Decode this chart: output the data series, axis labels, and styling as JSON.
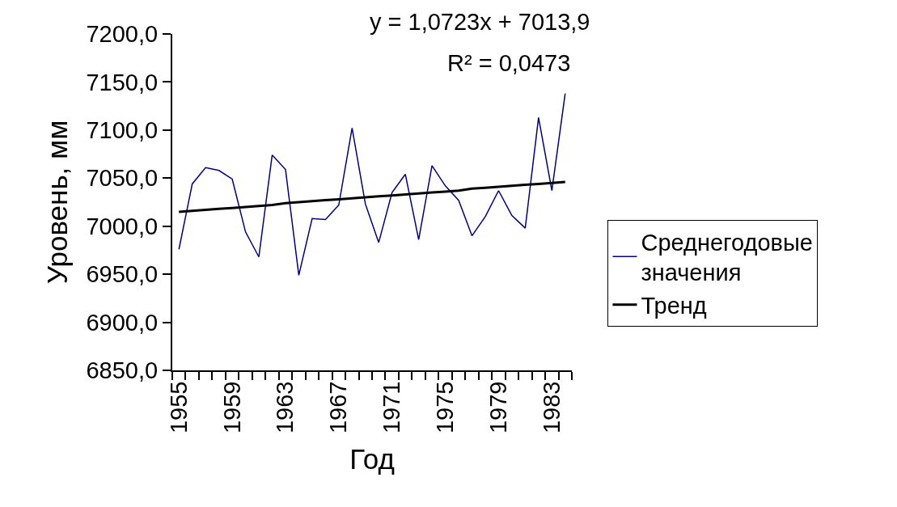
{
  "chart_data": {
    "type": "line",
    "xlabel": "Год",
    "ylabel": "Уровень, мм",
    "categories": [
      "1955",
      null,
      null,
      null,
      "1959",
      null,
      null,
      null,
      "1963",
      null,
      null,
      null,
      "1967",
      null,
      null,
      null,
      "1971",
      null,
      null,
      null,
      "1975",
      null,
      null,
      null,
      "1979",
      null,
      null,
      null,
      "1983",
      null
    ],
    "series": [
      {
        "name": "Среднегодовые значения",
        "color": "#000080",
        "values": [
          6976,
          7044,
          7061,
          7058,
          7049,
          6994,
          6968,
          7074,
          7059,
          6949,
          7008,
          7007,
          7022,
          7102,
          7023,
          6983,
          7035,
          7054,
          6986,
          7063,
          7042,
          7027,
          6990,
          7010,
          7037,
          7011,
          6998,
          7113,
          7037,
          7138
        ]
      },
      {
        "name": "Тренд",
        "color": "#000000",
        "values": [
          7015,
          7016,
          7017,
          7018,
          7019,
          7020,
          7021,
          7022,
          7024,
          7025,
          7026,
          7027,
          7028,
          7029,
          7030,
          7031,
          7032,
          7033,
          7034,
          7035,
          7036,
          7037,
          7039,
          7040,
          7041,
          7042,
          7043,
          7044,
          7045,
          7046
        ]
      }
    ],
    "ylim": [
      6850,
      7200
    ],
    "yticks": [
      {
        "value": 6850,
        "label": "6850,0"
      },
      {
        "value": 6900,
        "label": "6900,0"
      },
      {
        "value": 6950,
        "label": "6950,0"
      },
      {
        "value": 7000,
        "label": "7000,0"
      },
      {
        "value": 7050,
        "label": "7050,0"
      },
      {
        "value": 7100,
        "label": "7100,0"
      },
      {
        "value": 7150,
        "label": "7150,0"
      },
      {
        "value": 7200,
        "label": "7200,0"
      }
    ],
    "annotations": [
      "y = 1,0723x + 7013,9",
      "R² = 0,0473"
    ],
    "legend": "right",
    "marker": "none",
    "line_style": "solid"
  }
}
